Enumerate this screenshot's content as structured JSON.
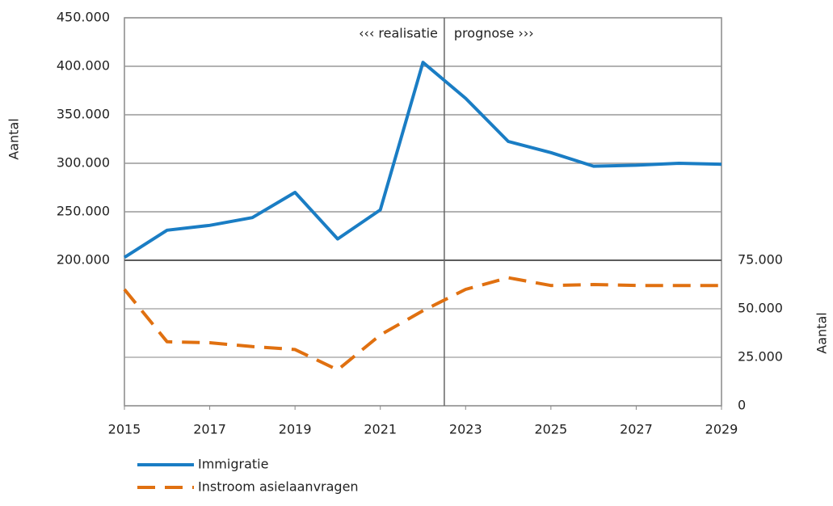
{
  "chart_data": {
    "type": "line",
    "x": [
      2015,
      2016,
      2017,
      2018,
      2019,
      2020,
      2021,
      2022,
      2023,
      2024,
      2025,
      2026,
      2027,
      2028,
      2029
    ],
    "series": [
      {
        "name": "Immigratie",
        "color": "#1a7dc4",
        "axis": "y",
        "values": [
          203000,
          231000,
          236000,
          244000,
          270000,
          222000,
          252000,
          404000,
          367000,
          322500,
          311000,
          297000,
          298000,
          300000,
          299000
        ]
      },
      {
        "name": "Instroom asielaanvragen",
        "color": "#e07010",
        "axis": "y2",
        "dashed": true,
        "values": [
          60000,
          33000,
          32500,
          30500,
          29000,
          18500,
          36500,
          49000,
          60000,
          66000,
          62000,
          62500,
          62000,
          62000,
          62000
        ]
      }
    ],
    "xlim": [
      2015,
      2029
    ],
    "xticks": [
      2015,
      2017,
      2019,
      2021,
      2023,
      2025,
      2027,
      2029
    ],
    "ylim": [
      50000,
      450000
    ],
    "yticks": [
      {
        "value": 200000,
        "label": "200.000"
      },
      {
        "value": 250000,
        "label": "250.000"
      },
      {
        "value": 300000,
        "label": "300.000"
      },
      {
        "value": 350000,
        "label": "350.000"
      },
      {
        "value": 400000,
        "label": "400.000"
      },
      {
        "value": 450000,
        "label": "450.000"
      }
    ],
    "y2lim": [
      0,
      200000
    ],
    "y2ticks": [
      0,
      {
        "value": 25000,
        "label": "25.000"
      },
      {
        "value": 50000,
        "label": "50.000"
      },
      {
        "value": 75000,
        "label": "75.000"
      }
    ],
    "ylabel": "Aantal",
    "y2label": "Aantal",
    "divider_x": 2022.5,
    "annotations": [
      "‹‹‹ realisatie",
      "prognose ›››"
    ],
    "grid": true
  }
}
